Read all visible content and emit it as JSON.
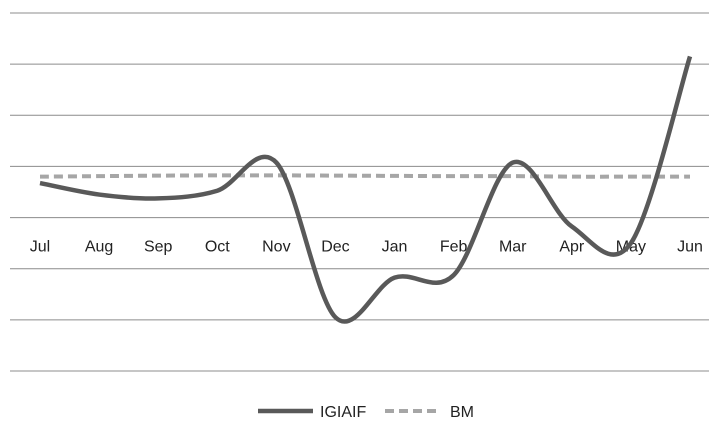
{
  "chart_data": {
    "type": "line",
    "title": "",
    "xlabel": "",
    "ylabel": "",
    "categories": [
      "Jul",
      "Aug",
      "Sep",
      "Oct",
      "Nov",
      "Dec",
      "Jan",
      "Feb",
      "Mar",
      "Apr",
      "May",
      "Jun"
    ],
    "series": [
      {
        "name": "IGIAIF",
        "color": "#595959",
        "style": "solid",
        "values": [
          1.35,
          0.9,
          0.75,
          1.05,
          2.15,
          -3.9,
          -2.35,
          -2.25,
          2.15,
          -0.35,
          -1.0,
          6.3
        ]
      },
      {
        "name": "BM",
        "color": "#a6a6a6",
        "style": "dashed",
        "values": [
          1.6,
          1.62,
          1.64,
          1.65,
          1.65,
          1.64,
          1.63,
          1.62,
          1.62,
          1.6,
          1.6,
          1.6
        ]
      }
    ],
    "ylim": [
      -6,
      8
    ],
    "gridlines_y": [
      -6,
      -4,
      -2,
      0,
      2,
      4,
      6,
      8
    ],
    "x_axis_at": 0,
    "grid": true,
    "legend": "bottom-center",
    "smooth": true
  }
}
